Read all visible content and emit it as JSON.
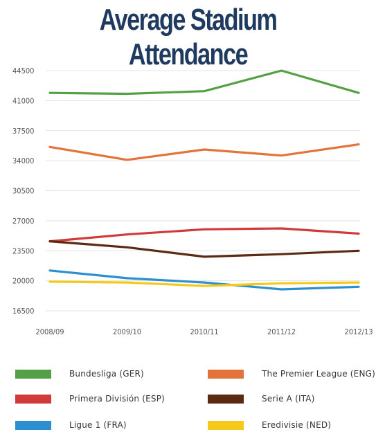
{
  "chart_data": {
    "type": "line",
    "title": "Average Stadium Attendance",
    "categories": [
      "2008/09",
      "2009/10",
      "2010/11",
      "2011/12",
      "2012/13"
    ],
    "yticks": [
      16500,
      20000,
      23500,
      27000,
      30500,
      34000,
      37500,
      41000,
      44500
    ],
    "ylim": [
      16500,
      44500
    ],
    "grid": true,
    "legend_placement": "bottom",
    "series": [
      {
        "name": "Bundesliga (GER)",
        "color": "#53a045",
        "values": [
          41900,
          41800,
          42100,
          44500,
          41900
        ]
      },
      {
        "name": "The Premier League (ENG)",
        "color": "#e2733a",
        "values": [
          35600,
          34100,
          35300,
          34600,
          35900
        ]
      },
      {
        "name": "Primera División (ESP)",
        "color": "#d13a3a",
        "values": [
          24600,
          25400,
          26000,
          26100,
          25500
        ]
      },
      {
        "name": "Serie A (ITA)",
        "color": "#5a2a12",
        "values": [
          24600,
          23900,
          22800,
          23100,
          23500
        ]
      },
      {
        "name": "Ligue 1  (FRA)",
        "color": "#2b8fd0",
        "values": [
          21200,
          20300,
          19800,
          19000,
          19300
        ]
      },
      {
        "name": "Eredivisie (NED)",
        "color": "#f5c91a",
        "values": [
          19900,
          19800,
          19400,
          19700,
          19800
        ]
      }
    ]
  }
}
